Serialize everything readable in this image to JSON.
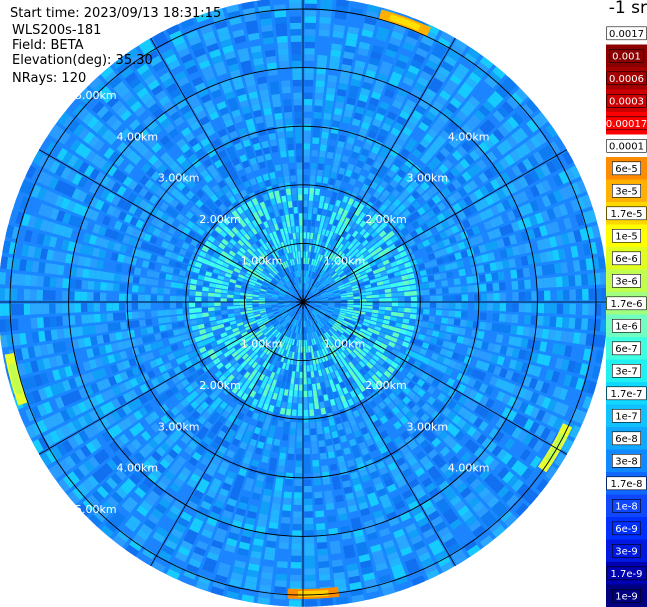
{
  "header": {
    "start_time": "Start time: 2023/09/13 18:31:15",
    "instrument": "WLS200s-181",
    "field": "Field: BETA",
    "elevation": "Elevation(deg): 35.30",
    "nrays": "NRays: 120"
  },
  "colorbar": {
    "unit": "-1 sr",
    "labels": [
      "0.0017",
      "0.001",
      "0.0006",
      "0.0003",
      "0.00017",
      "0.0001",
      "6e-5",
      "3e-5",
      "1.7e-5",
      "1e-5",
      "6e-6",
      "3e-6",
      "1.7e-6",
      "1e-6",
      "6e-7",
      "3e-7",
      "1.7e-7",
      "1e-7",
      "6e-8",
      "3e-8",
      "1.7e-8",
      "1e-8",
      "6e-9",
      "3e-9",
      "1.7e-9",
      "1e-9"
    ],
    "colors": [
      "#ffffff",
      "#8b0000",
      "#a50000",
      "#cc0000",
      "#ff0000",
      "#ffffff",
      "#ff8c00",
      "#ffb000",
      "#ffd700",
      "#ffff00",
      "#e0ff20",
      "#c0ff50",
      "#a0ff80",
      "#70ffc0",
      "#40ffe0",
      "#20f0f0",
      "#10d8ff",
      "#10c0ff",
      "#10a8ff",
      "#1088ff",
      "#1068ff",
      "#1048ff",
      "#0030ff",
      "#0018e0",
      "#0000b0",
      "#000080"
    ]
  },
  "chart_data": {
    "type": "heatmap",
    "projection": "polar PPI",
    "field": "BETA",
    "nrays": 120,
    "range_unit": "km",
    "range_rings_km": [
      1,
      2,
      3,
      4,
      5
    ],
    "max_range_km": 5.2,
    "range_labels": [
      "1.00km",
      "2.00km",
      "3.00km",
      "4.00km",
      "5.00km"
    ],
    "dominant_value": "3e-8 to 1e-7 (blue/cyan) throughout",
    "features": [
      {
        "azimuth_deg": 20,
        "range_km": 5.1,
        "value": "1e-5 to 6e-5"
      },
      {
        "azimuth_deg": 178,
        "range_km": 5.0,
        "value": "3e-5 to 1e-4"
      },
      {
        "azimuth_deg": 120,
        "range_km": 5.0,
        "value": "3e-6 to 1e-5"
      },
      {
        "azimuth_deg": 255,
        "range_km": 5.1,
        "value": "1e-5 to 3e-5"
      },
      {
        "azimuth_deg": 268,
        "range_km": 5.3,
        "value": "1e-5 to 3e-5"
      }
    ]
  }
}
